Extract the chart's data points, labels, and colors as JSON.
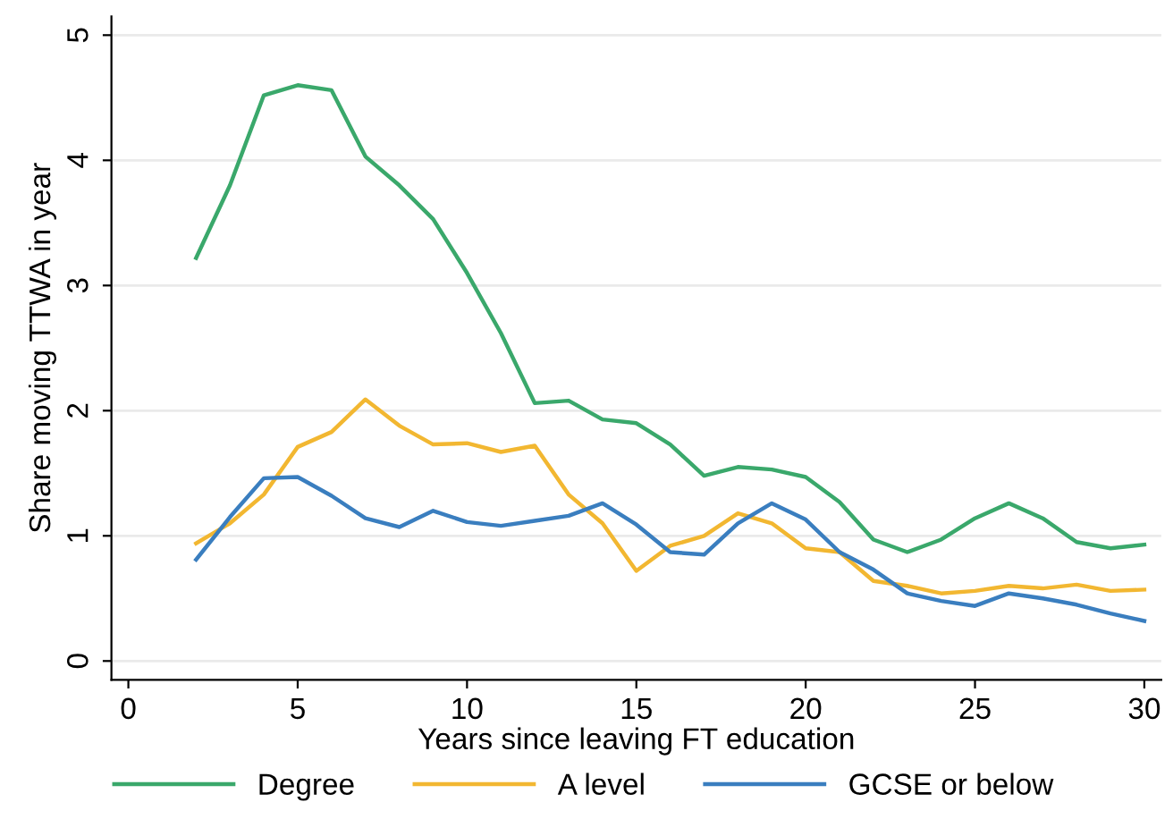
{
  "chart_data": {
    "type": "line",
    "xlabel": "Years since leaving FT education",
    "ylabel": "Share moving TTWA in year",
    "x": [
      2,
      3,
      4,
      5,
      6,
      7,
      8,
      9,
      10,
      11,
      12,
      13,
      14,
      15,
      16,
      17,
      18,
      19,
      20,
      21,
      22,
      23,
      24,
      25,
      26,
      27,
      28,
      29,
      30
    ],
    "series": [
      {
        "name": "Degree",
        "color": "#3aa86b",
        "values": [
          3.22,
          3.8,
          4.52,
          4.6,
          4.56,
          4.03,
          3.8,
          3.53,
          3.1,
          2.62,
          2.06,
          2.08,
          1.93,
          1.9,
          1.73,
          1.48,
          1.55,
          1.53,
          1.47,
          1.27,
          0.97,
          0.87,
          0.97,
          1.14,
          1.26,
          1.14,
          0.95,
          0.9,
          0.93
        ]
      },
      {
        "name": "A level",
        "color": "#f2b731",
        "values": [
          0.94,
          1.1,
          1.33,
          1.71,
          1.83,
          2.09,
          1.88,
          1.73,
          1.74,
          1.67,
          1.72,
          1.33,
          1.1,
          0.72,
          0.92,
          1.0,
          1.18,
          1.1,
          0.9,
          0.87,
          0.64,
          0.6,
          0.54,
          0.56,
          0.6,
          0.58,
          0.61,
          0.56,
          0.57
        ]
      },
      {
        "name": "GCSE or below",
        "color": "#3a7ebf",
        "values": [
          0.81,
          1.15,
          1.46,
          1.47,
          1.32,
          1.14,
          1.07,
          1.2,
          1.11,
          1.08,
          1.12,
          1.16,
          1.26,
          1.09,
          0.87,
          0.85,
          1.1,
          1.26,
          1.13,
          0.87,
          0.73,
          0.54,
          0.48,
          0.44,
          0.54,
          0.5,
          0.45,
          0.38,
          0.32
        ]
      }
    ],
    "xlim": [
      -0.5,
      30.5
    ],
    "ylim": [
      -0.15,
      5.15
    ],
    "xticks": [
      0,
      5,
      10,
      15,
      20,
      25,
      30
    ],
    "yticks": [
      0,
      1,
      2,
      3,
      4,
      5
    ],
    "grid": "y",
    "legend": "bottom",
    "marker": "none",
    "line_style": "solid"
  }
}
